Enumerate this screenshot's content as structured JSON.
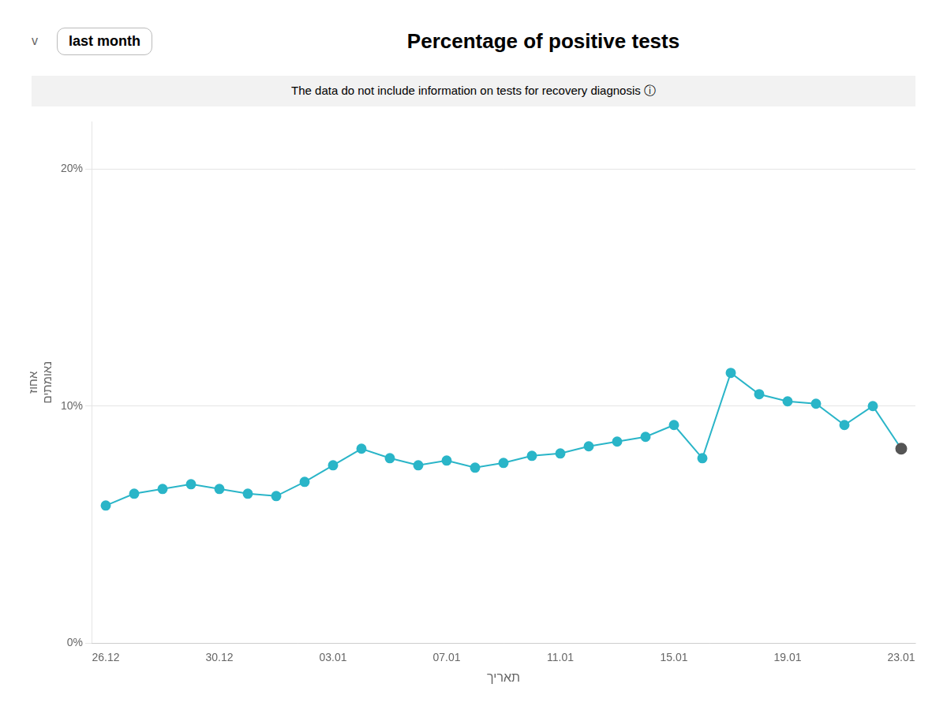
{
  "chart_data": {
    "type": "line",
    "title": "Percentage of positive tests",
    "subtitle": "last month",
    "annotations": [
      "v",
      "The data do not include information on tests for recovery diagnosis  ⓘ"
    ],
    "x_label": "תאריך",
    "y_label": [
      "אחוז",
      "נאומתים"
    ],
    "categories": [
      "26.12",
      null,
      null,
      null,
      "30.12",
      null,
      null,
      null,
      "03.01",
      null,
      null,
      null,
      "07.01",
      null,
      null,
      null,
      "11.01",
      null,
      null,
      null,
      "15.01",
      null,
      null,
      null,
      "19.01",
      null,
      null,
      null,
      "23.01"
    ],
    "values": [
      5.8,
      6.3,
      6.5,
      6.7,
      6.5,
      6.3,
      6.2,
      6.8,
      7.5,
      8.2,
      7.8,
      7.5,
      7.7,
      7.4,
      7.6,
      7.9,
      8.0,
      8.3,
      8.5,
      8.7,
      9.2,
      7.8,
      11.4,
      10.5,
      10.2,
      10.1,
      9.2,
      10.0,
      8.2
    ],
    "color": "#2ab5c8",
    "colors": [
      "#2ab5c8",
      "#2ab5c8",
      "#2ab5c8",
      "#2ab5c8",
      "#2ab5c8",
      "#2ab5c8",
      "#2ab5c8",
      "#2ab5c8",
      "#2ab5c8",
      "#2ab5c8",
      "#2ab5c8",
      "#2ab5c8",
      "#2ab5c8",
      "#2ab5c8",
      "#2ab5c8",
      "#2ab5c8",
      "#2ab5c8",
      "#2ab5c8",
      "#2ab5c8",
      "#2ab5c8",
      "#2ab5c8",
      "#2ab5c8",
      "#2ab5c8",
      "#2ab5c8",
      "#2ab5c8",
      "#2ab5c8",
      "#2ab5c8",
      "#2ab5c8",
      "#555555"
    ],
    "ylim": [
      0,
      22
    ],
    "yticks": [
      {
        "value": 0,
        "label": "0%"
      },
      {
        "value": 10,
        "label": "10%"
      },
      {
        "value": 20,
        "label": "20%"
      }
    ],
    "grid": true
  }
}
